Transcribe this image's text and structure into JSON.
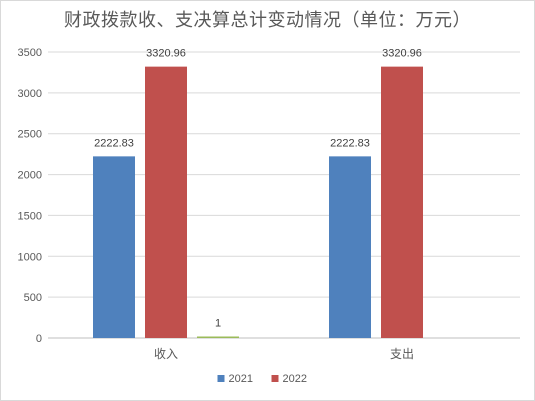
{
  "chart_data": {
    "type": "bar",
    "title": "财政拨款收、支决算总计变动情况（单位：万元）",
    "categories": [
      "收入",
      "支出"
    ],
    "series": [
      {
        "name": "2021",
        "values": [
          2222.83,
          2222.83
        ],
        "color": "#4f81bd"
      },
      {
        "name": "2022",
        "values": [
          3320.96,
          3320.96
        ],
        "color": "#c0504d"
      },
      {
        "name": "",
        "values": [
          1,
          null
        ],
        "color": "#9bbb59"
      }
    ],
    "data_labels": {
      "2021": [
        "2222.83",
        "2222.83"
      ],
      "2022": [
        "3320.96",
        "3320.96"
      ],
      "third": [
        "1",
        ""
      ]
    },
    "yticks": [
      "0",
      "500",
      "1000",
      "1500",
      "2000",
      "2500",
      "3000",
      "3500"
    ],
    "ylim": [
      0,
      3500
    ],
    "xlabel": "",
    "ylabel": "",
    "grid": true,
    "legend_position": "bottom"
  }
}
